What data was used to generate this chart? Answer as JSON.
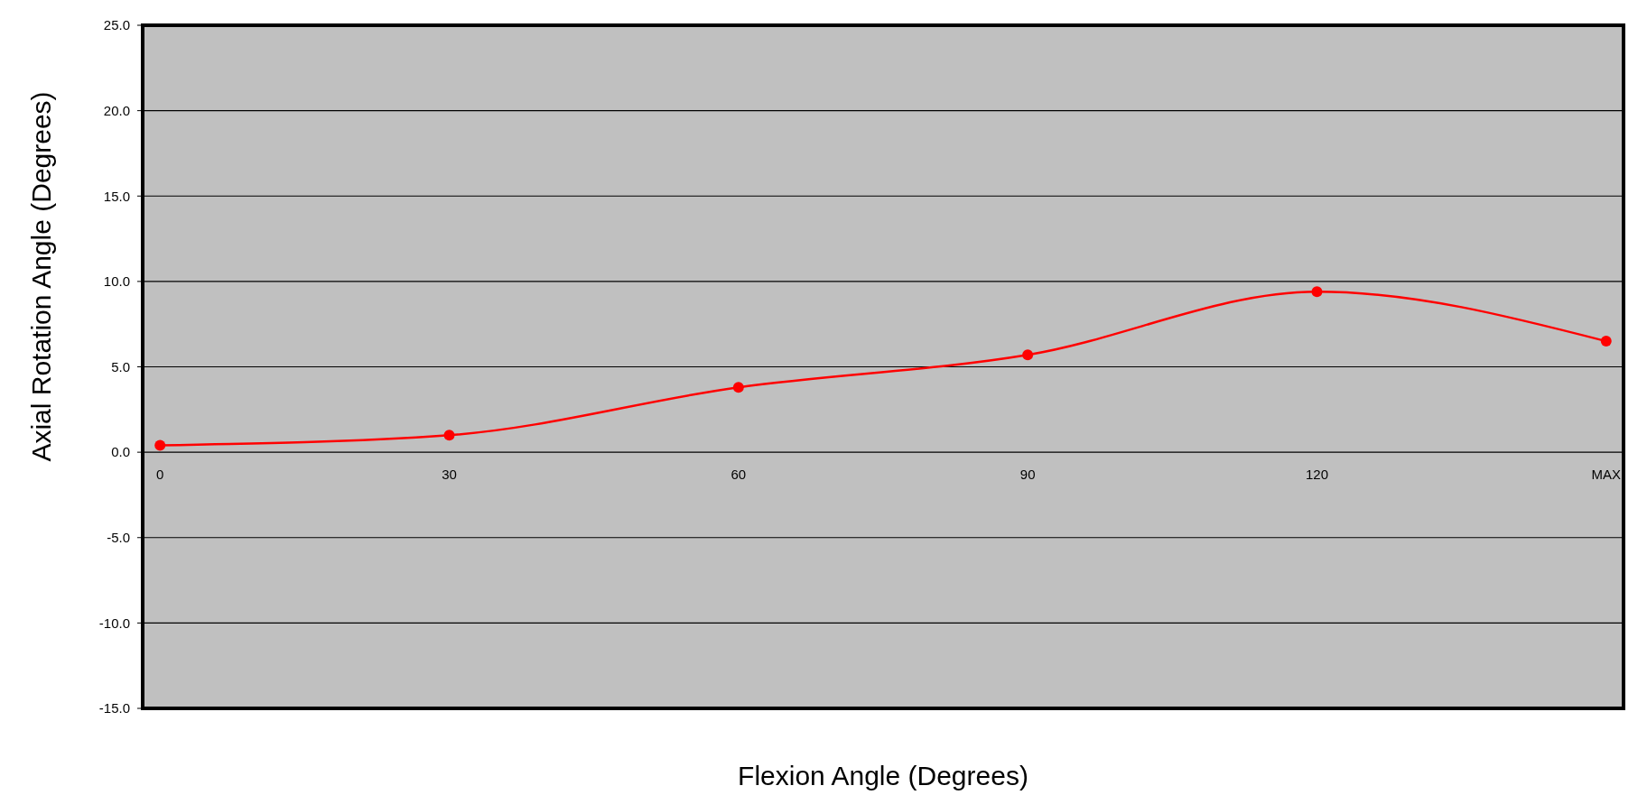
{
  "chart_data": {
    "type": "line",
    "xlabel": "Flexion Angle (Degrees)",
    "ylabel": "Axial Rotation Angle (Degrees)",
    "categories": [
      "0",
      "30",
      "60",
      "90",
      "120",
      "MAX"
    ],
    "series": [
      {
        "color": "#ff0000",
        "values": [
          0.4,
          1.0,
          3.8,
          5.7,
          9.4,
          6.5
        ]
      }
    ],
    "ylim": [
      -15,
      25
    ],
    "yticks": [
      {
        "value": -15,
        "label": "-15.0"
      },
      {
        "value": -10,
        "label": "-10.0"
      },
      {
        "value": -5,
        "label": "-5.0"
      },
      {
        "value": 0,
        "label": "0.0"
      },
      {
        "value": 5,
        "label": "5.0"
      },
      {
        "value": 10,
        "label": "10.0"
      },
      {
        "value": 15,
        "label": "15.0"
      },
      {
        "value": 20,
        "label": "20.0"
      },
      {
        "value": 25,
        "label": "25.0"
      }
    ],
    "grid": "y",
    "marker": "circle",
    "line_style": "solid"
  }
}
